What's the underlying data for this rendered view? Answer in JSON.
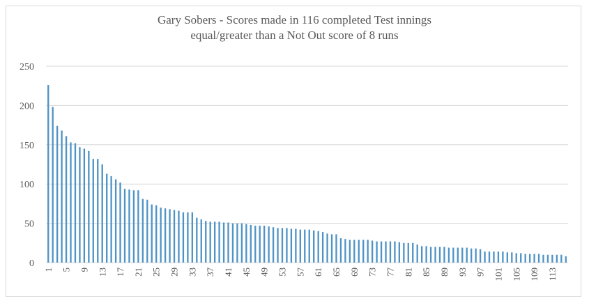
{
  "chart_data": {
    "type": "bar",
    "title_line1": "Gary Sobers - Scores made in 116 completed Test innings",
    "title_line2": "equal/greater than a Not Out score of 8 runs",
    "xlabel": "",
    "ylabel": "",
    "ylim": [
      0,
      250
    ],
    "yticks": [
      0,
      50,
      100,
      150,
      200,
      250
    ],
    "xtick_labels": [
      "1",
      "5",
      "9",
      "13",
      "17",
      "21",
      "25",
      "29",
      "33",
      "37",
      "41",
      "45",
      "49",
      "53",
      "57",
      "61",
      "65",
      "69",
      "73",
      "77",
      "81",
      "85",
      "89",
      "93",
      "97",
      "101",
      "105",
      "109",
      "113"
    ],
    "grid": true,
    "bar_color": "#4f93c6",
    "grid_color": "#d9d9d9",
    "categories": [
      1,
      2,
      3,
      4,
      5,
      6,
      7,
      8,
      9,
      10,
      11,
      12,
      13,
      14,
      15,
      16,
      17,
      18,
      19,
      20,
      21,
      22,
      23,
      24,
      25,
      26,
      27,
      28,
      29,
      30,
      31,
      32,
      33,
      34,
      35,
      36,
      37,
      38,
      39,
      40,
      41,
      42,
      43,
      44,
      45,
      46,
      47,
      48,
      49,
      50,
      51,
      52,
      53,
      54,
      55,
      56,
      57,
      58,
      59,
      60,
      61,
      62,
      63,
      64,
      65,
      66,
      67,
      68,
      69,
      70,
      71,
      72,
      73,
      74,
      75,
      76,
      77,
      78,
      79,
      80,
      81,
      82,
      83,
      84,
      85,
      86,
      87,
      88,
      89,
      90,
      91,
      92,
      93,
      94,
      95,
      96,
      97,
      98,
      99,
      100,
      101,
      102,
      103,
      104,
      105,
      106,
      107,
      108,
      109,
      110,
      111,
      112,
      113,
      114,
      115,
      116
    ],
    "values": [
      226,
      198,
      174,
      168,
      161,
      153,
      152,
      147,
      145,
      142,
      132,
      132,
      125,
      113,
      110,
      106,
      102,
      94,
      93,
      92,
      92,
      81,
      80,
      74,
      73,
      70,
      69,
      68,
      67,
      66,
      64,
      64,
      64,
      57,
      55,
      53,
      52,
      52,
      52,
      51,
      51,
      50,
      50,
      50,
      49,
      48,
      47,
      47,
      47,
      46,
      45,
      44,
      44,
      44,
      43,
      43,
      42,
      42,
      42,
      41,
      40,
      39,
      37,
      36,
      36,
      31,
      30,
      29,
      29,
      29,
      29,
      29,
      28,
      27,
      27,
      27,
      27,
      27,
      26,
      25,
      25,
      25,
      23,
      21,
      21,
      20,
      20,
      20,
      20,
      19,
      19,
      19,
      19,
      19,
      18,
      18,
      17,
      14,
      14,
      14,
      14,
      14,
      13,
      13,
      12,
      12,
      11,
      11,
      11,
      11,
      10,
      10,
      10,
      10,
      10,
      8
    ]
  }
}
